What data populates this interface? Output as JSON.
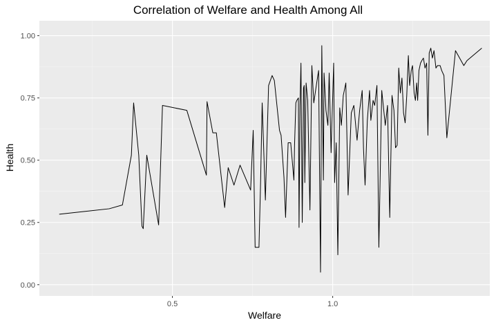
{
  "chart_data": {
    "type": "line",
    "title": "Correlation of Welfare and Health Among All",
    "xlabel": "Welfare",
    "ylabel": "Health",
    "xlim": [
      0.085,
      1.49
    ],
    "ylim": [
      -0.045,
      1.06
    ],
    "x_ticks": [
      0.5,
      1.0
    ],
    "x_tick_labels": [
      "0.5",
      "1.0"
    ],
    "y_ticks": [
      0.0,
      0.25,
      0.5,
      0.75,
      1.0
    ],
    "y_tick_labels": [
      "0.00",
      "0.25",
      "0.50",
      "0.75",
      "1.00"
    ],
    "grid": true,
    "background": "#ebebeb",
    "line_color": "#000000",
    "series": [
      {
        "x": [
          0.147,
          0.303,
          0.344,
          0.372,
          0.379,
          0.395,
          0.405,
          0.409,
          0.42,
          0.457,
          0.469,
          0.545,
          0.606,
          0.608,
          0.626,
          0.637,
          0.663,
          0.674,
          0.692,
          0.711,
          0.744,
          0.752,
          0.758,
          0.77,
          0.775,
          0.78,
          0.79,
          0.8,
          0.811,
          0.818,
          0.834,
          0.839,
          0.848,
          0.853,
          0.861,
          0.869,
          0.879,
          0.881,
          0.885,
          0.888,
          0.893,
          0.895,
          0.898,
          0.901,
          0.905,
          0.909,
          0.911,
          0.913,
          0.917,
          0.922,
          0.929,
          0.935,
          0.941,
          0.95,
          0.956,
          0.962,
          0.966,
          0.971,
          0.973,
          0.979,
          0.985,
          0.989,
          0.995,
          1.003,
          1.006,
          1.011,
          1.016,
          1.022,
          1.027,
          1.033,
          1.041,
          1.048,
          1.058,
          1.066,
          1.076,
          1.084,
          1.088,
          1.092,
          1.096,
          1.101,
          1.108,
          1.115,
          1.119,
          1.126,
          1.131,
          1.138,
          1.144,
          1.153,
          1.164,
          1.171,
          1.178,
          1.185,
          1.191,
          1.196,
          1.201,
          1.206,
          1.211,
          1.216,
          1.221,
          1.226,
          1.231,
          1.236,
          1.24,
          1.245,
          1.249,
          1.254,
          1.258,
          1.262,
          1.265,
          1.269,
          1.274,
          1.278,
          1.283,
          1.288,
          1.293,
          1.297,
          1.301,
          1.306,
          1.311,
          1.316,
          1.322,
          1.327,
          1.335,
          1.34,
          1.347,
          1.356,
          1.383,
          1.409,
          1.419,
          1.465
        ],
        "y": [
          0.283,
          0.305,
          0.32,
          0.52,
          0.73,
          0.52,
          0.235,
          0.225,
          0.52,
          0.24,
          0.72,
          0.7,
          0.44,
          0.735,
          0.61,
          0.61,
          0.31,
          0.47,
          0.4,
          0.48,
          0.38,
          0.62,
          0.15,
          0.15,
          0.41,
          0.73,
          0.34,
          0.8,
          0.84,
          0.82,
          0.62,
          0.6,
          0.43,
          0.27,
          0.57,
          0.57,
          0.42,
          0.56,
          0.73,
          0.74,
          0.75,
          0.23,
          0.72,
          0.89,
          0.25,
          0.79,
          0.8,
          0.41,
          0.81,
          0.74,
          0.3,
          0.88,
          0.73,
          0.81,
          0.86,
          0.05,
          0.96,
          0.42,
          0.85,
          0.7,
          0.64,
          0.85,
          0.53,
          0.89,
          0.41,
          0.57,
          0.12,
          0.71,
          0.64,
          0.76,
          0.81,
          0.36,
          0.69,
          0.72,
          0.58,
          0.7,
          0.74,
          0.78,
          0.55,
          0.4,
          0.66,
          0.78,
          0.66,
          0.74,
          0.72,
          0.8,
          0.15,
          0.78,
          0.64,
          0.72,
          0.27,
          0.76,
          0.7,
          0.55,
          0.56,
          0.87,
          0.77,
          0.83,
          0.69,
          0.65,
          0.76,
          0.92,
          0.8,
          0.86,
          0.88,
          0.77,
          0.74,
          0.81,
          0.74,
          0.86,
          0.89,
          0.9,
          0.91,
          0.87,
          0.89,
          0.6,
          0.93,
          0.95,
          0.91,
          0.94,
          0.87,
          0.88,
          0.88,
          0.86,
          0.84,
          0.59,
          0.94,
          0.88,
          0.9,
          0.95
        ]
      }
    ]
  }
}
